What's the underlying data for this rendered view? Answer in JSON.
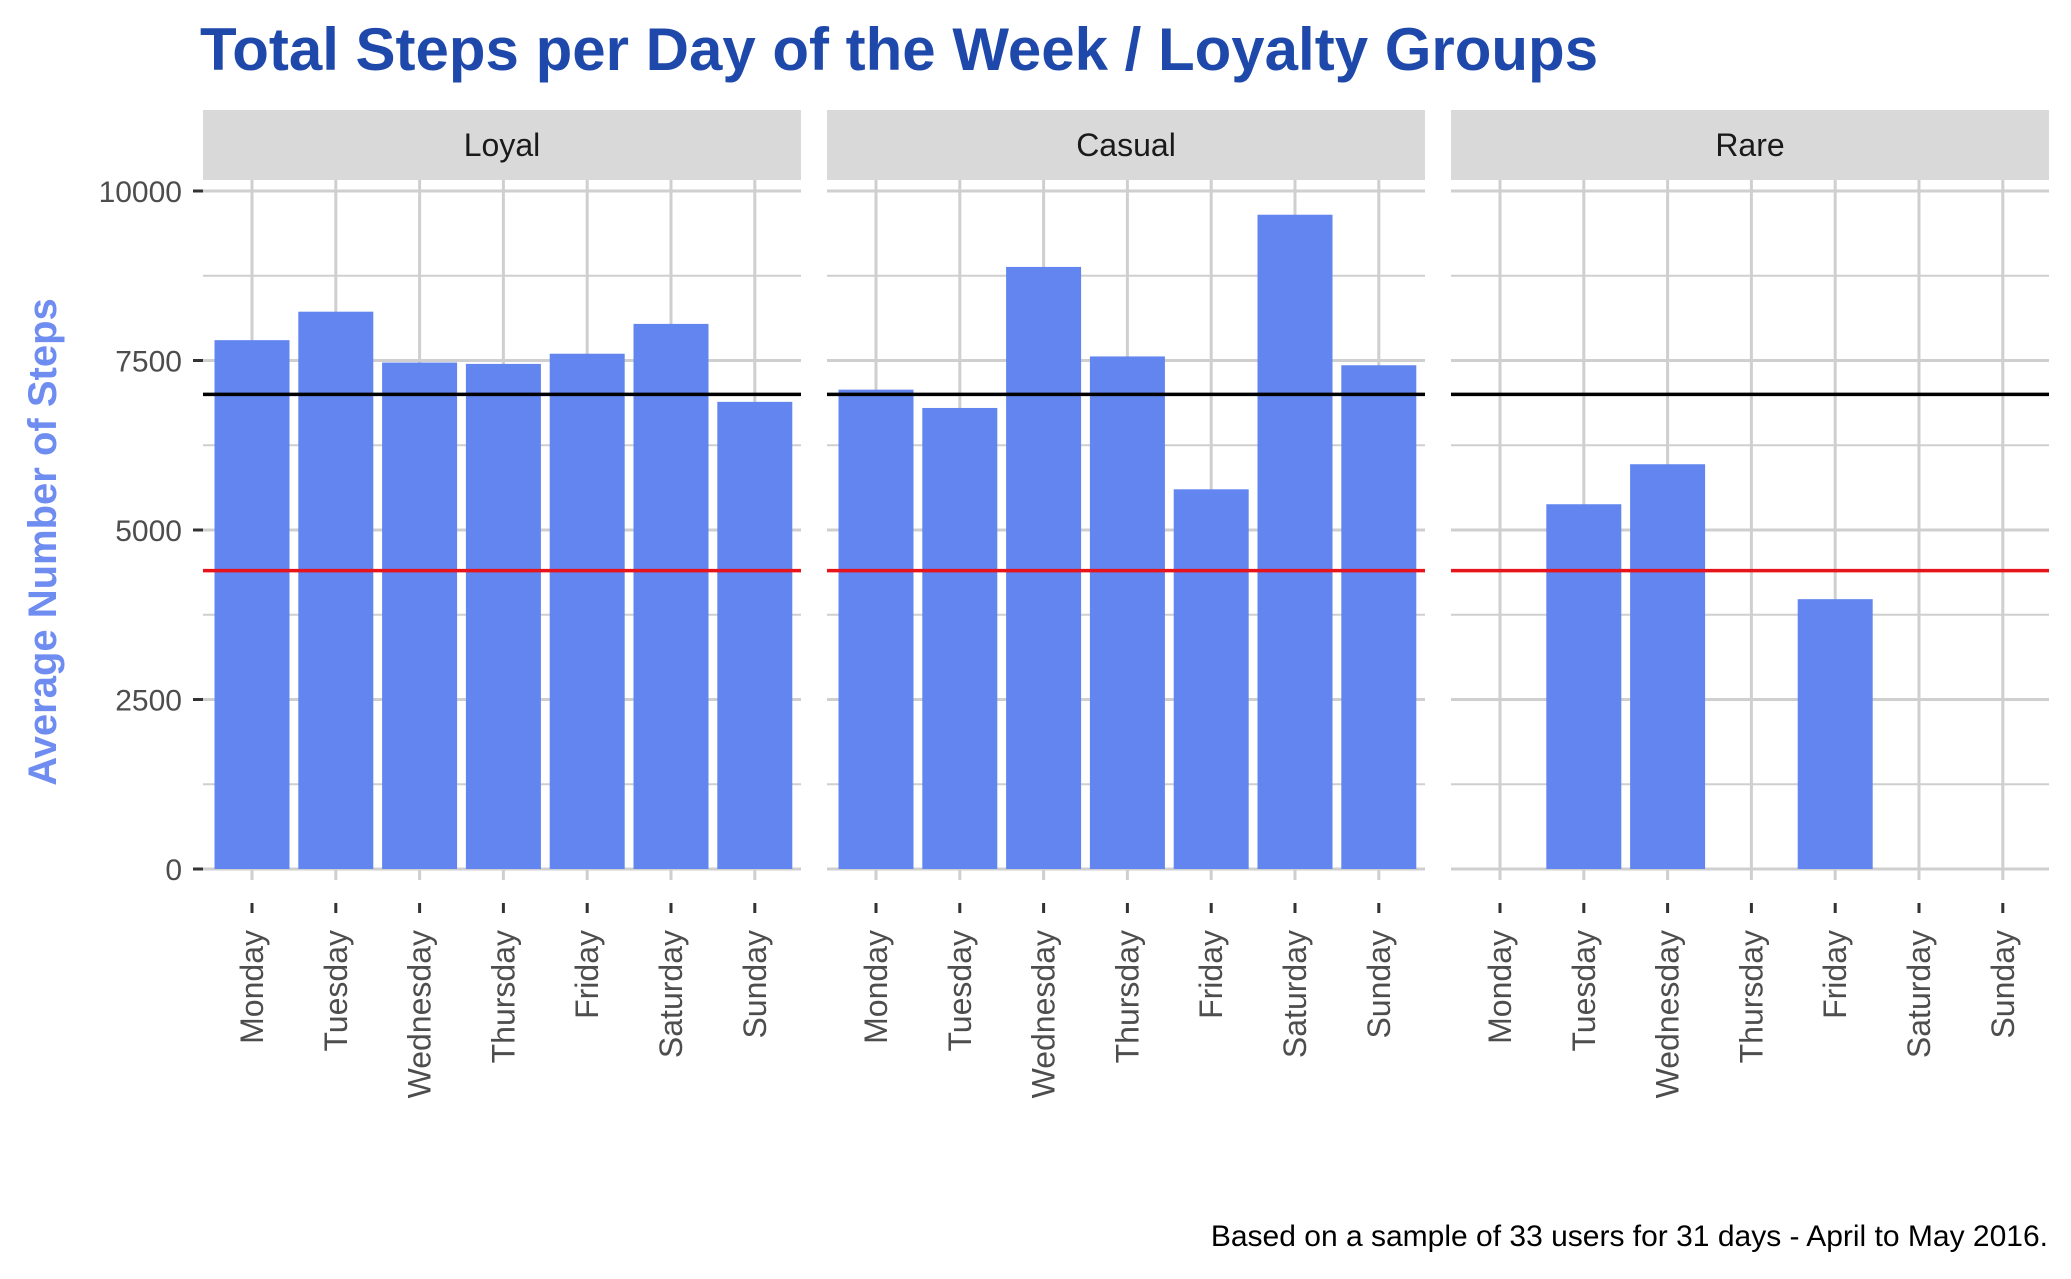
{
  "chart_data": {
    "type": "bar",
    "title": "Total Steps per Day of the Week / Loyalty Groups",
    "xlabel": "",
    "ylabel": "Average Number of Steps",
    "caption": "Based on a sample of 33 users for 31 days - April to May 2016.",
    "categories": [
      "Monday",
      "Tuesday",
      "Wednesday",
      "Thursday",
      "Friday",
      "Saturday",
      "Sunday"
    ],
    "ylim": [
      0,
      10000
    ],
    "yticks": [
      0,
      2500,
      5000,
      7500,
      10000
    ],
    "ytick_labels": [
      "0",
      "2500",
      "5000",
      "7500",
      "10000"
    ],
    "reference_lines": [
      {
        "name": "black-line",
        "value": 7000,
        "color": "#000000"
      },
      {
        "name": "red-line",
        "value": 4400,
        "color": "#e8141c"
      }
    ],
    "facets": [
      {
        "name": "Loyal",
        "values": [
          7800,
          8220,
          7470,
          7450,
          7600,
          8040,
          6890
        ]
      },
      {
        "name": "Casual",
        "values": [
          7070,
          6800,
          8880,
          7560,
          5600,
          9650,
          7430
        ]
      },
      {
        "name": "Rare",
        "values": [
          null,
          5380,
          5970,
          null,
          3980,
          null,
          null
        ]
      }
    ],
    "colors": {
      "bar": "#6285ef",
      "title": "#1f48ab",
      "ylabel": "#6f8df0",
      "strip_bg": "#d9d9d9",
      "grid": "#cfcfcf"
    }
  }
}
